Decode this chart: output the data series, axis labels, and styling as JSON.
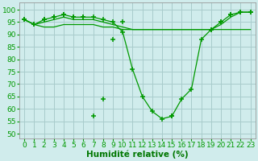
{
  "xlabel": "Humidité relative (%)",
  "background_color": "#d0ecec",
  "grid_color": "#a8cccc",
  "line_color": "#009900",
  "xlim": [
    -0.5,
    23.5
  ],
  "ylim": [
    48,
    103
  ],
  "yticks": [
    50,
    55,
    60,
    65,
    70,
    75,
    80,
    85,
    90,
    95,
    100
  ],
  "xticks": [
    0,
    1,
    2,
    3,
    4,
    5,
    6,
    7,
    8,
    9,
    10,
    11,
    12,
    13,
    14,
    15,
    16,
    17,
    18,
    19,
    20,
    21,
    22,
    23
  ],
  "xlabel_fontsize": 7.5,
  "tick_fontsize": 6.5,
  "series": [
    {
      "x": [
        0,
        1,
        2,
        3,
        4,
        5,
        6,
        7,
        8,
        9,
        10,
        11,
        12,
        13,
        14,
        15,
        16,
        17,
        18,
        19,
        20,
        21,
        22,
        23
      ],
      "y": [
        96,
        94,
        96,
        97,
        98,
        97,
        97,
        97,
        96,
        95,
        91,
        76,
        65,
        59,
        56,
        57,
        64,
        68,
        88,
        92,
        95,
        98,
        99,
        99
      ],
      "marker": true,
      "line": true
    },
    {
      "x": [
        0,
        1,
        2,
        3,
        4,
        5,
        6,
        7,
        8,
        9,
        10,
        11,
        12,
        13,
        14,
        15,
        16,
        17,
        18,
        19,
        20,
        21,
        22,
        23
      ],
      "y": [
        96,
        94,
        93,
        93,
        94,
        94,
        94,
        94,
        93,
        93,
        92,
        92,
        92,
        92,
        92,
        92,
        92,
        92,
        92,
        92,
        92,
        92,
        92,
        92
      ],
      "marker": false,
      "line": true
    },
    {
      "x": [
        0,
        1,
        2,
        3,
        4,
        5,
        6,
        7,
        8,
        9,
        10,
        15,
        19,
        20,
        21,
        22,
        23
      ],
      "y": [
        96,
        94,
        96,
        97,
        98,
        97,
        97,
        57,
        64,
        88,
        95,
        57,
        92,
        95,
        98,
        99,
        99
      ],
      "marker": true,
      "line": false
    },
    {
      "x": [
        0,
        1,
        2,
        3,
        4,
        5,
        6,
        7,
        8,
        9,
        10,
        11,
        15,
        16,
        19,
        20,
        21,
        22,
        23
      ],
      "y": [
        96,
        94,
        95,
        96,
        97,
        96,
        96,
        96,
        95,
        94,
        93,
        92,
        92,
        92,
        92,
        94,
        97,
        99,
        99
      ],
      "marker": false,
      "line": true
    }
  ]
}
